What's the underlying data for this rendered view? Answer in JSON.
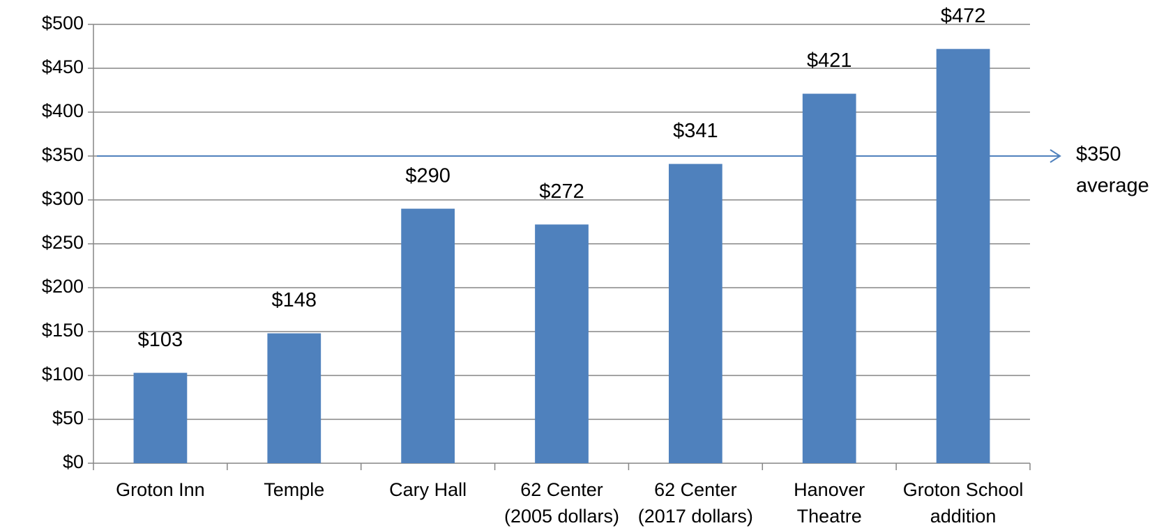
{
  "chart_data": {
    "type": "bar",
    "categories": [
      [
        "Groton Inn"
      ],
      [
        "Temple"
      ],
      [
        "Cary Hall"
      ],
      [
        "62 Center",
        "(2005 dollars)"
      ],
      [
        "62 Center",
        "(2017 dollars)"
      ],
      [
        "Hanover",
        "Theatre"
      ],
      [
        "Groton School",
        "addition"
      ]
    ],
    "values": [
      103,
      148,
      290,
      272,
      341,
      421,
      472
    ],
    "value_labels": [
      "$103",
      "$148",
      "$290",
      "$272",
      "$341",
      "$421",
      "$472"
    ],
    "color": "#4f81bd",
    "ylim": [
      0,
      500
    ],
    "yticks": [
      {
        "value": 0,
        "label": "$0"
      },
      {
        "value": 50,
        "label": "$50"
      },
      {
        "value": 100,
        "label": "$100"
      },
      {
        "value": 150,
        "label": "$150"
      },
      {
        "value": 200,
        "label": "$200"
      },
      {
        "value": 250,
        "label": "$250"
      },
      {
        "value": 300,
        "label": "$300"
      },
      {
        "value": 350,
        "label": "$350"
      },
      {
        "value": 400,
        "label": "$400"
      },
      {
        "value": 450,
        "label": "$450"
      },
      {
        "value": 500,
        "label": "$500"
      }
    ],
    "grid": true,
    "average_line": {
      "value": 350,
      "label": "$350",
      "text": "average",
      "color": "#4f81bd"
    }
  }
}
